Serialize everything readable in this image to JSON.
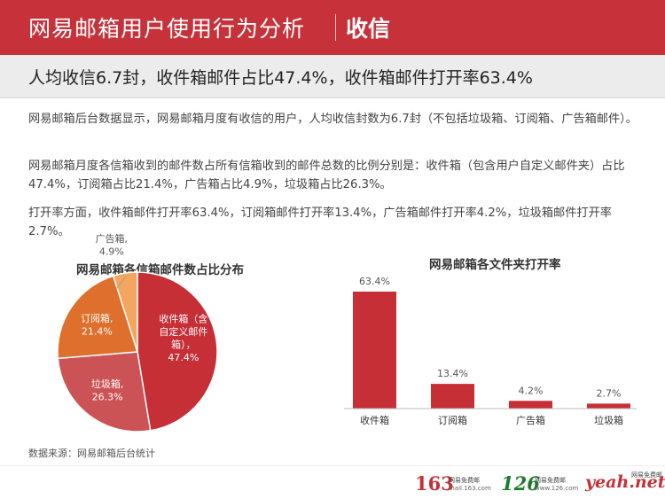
{
  "header": {
    "title": "网易邮箱用户使用行为分析",
    "section": "收信"
  },
  "subheading": "人均收信6.7封，收件箱邮件占比47.4%，收件箱邮件打开率63.4%",
  "paragraphs": [
    "网易邮箱后台数据显示，网易邮箱月度有收信的用户，人均收信封数为6.7封（不包括垃圾箱、订阅箱、广告箱邮件）。",
    "网易邮箱月度各信箱收到的邮件数占所有信箱收到的邮件总数的比例分别是：收件箱（包含用户自定义邮件夹）占比47.4%，订阅箱占比21.4%，广告箱占比4.9%，垃圾箱占比26.3%。",
    "打开率方面，收件箱邮件打开率63.4%，订阅箱邮件打开率13.4%，广告箱邮件打开率4.2%，垃圾箱邮件打开率2.7%。"
  ],
  "chart_data": [
    {
      "type": "pie",
      "title": "网易邮箱各信箱邮件数占比分布",
      "slices": [
        {
          "label": "收件箱（含自定义邮件箱）",
          "value": 47.4,
          "display": "47.4%",
          "color": "#c62f36"
        },
        {
          "label": "垃圾箱",
          "value": 26.3,
          "display": "26.3%",
          "color": "#cc5355"
        },
        {
          "label": "订阅箱",
          "value": 21.4,
          "display": "21.4%",
          "color": "#de6f2c"
        },
        {
          "label": "广告箱",
          "value": 4.9,
          "display": "4.9%",
          "color": "#f2a660"
        }
      ],
      "slice_text": [
        {
          "lines": [
            "收件箱（含",
            "自定义邮件",
            "箱），",
            "47.4%"
          ],
          "color": "#ffffff"
        },
        {
          "lines": [
            "垃圾箱,",
            "26.3%"
          ],
          "color": "#ffffff"
        },
        {
          "lines": [
            "订阅箱,",
            "21.4%"
          ],
          "color": "#ffffff"
        },
        {
          "lines": [
            "广告箱,",
            "4.9%"
          ],
          "color": "#555555"
        }
      ]
    },
    {
      "type": "bar",
      "title": "网易邮箱各文件夹打开率",
      "categories": [
        "收件箱",
        "订阅箱",
        "广告箱",
        "垃圾箱"
      ],
      "values": [
        63.4,
        13.4,
        4.2,
        2.7
      ],
      "value_labels": [
        "63.4%",
        "13.4%",
        "4.2%",
        "2.7%"
      ],
      "color": "#c62f36",
      "ylim": [
        0,
        63.4
      ]
    }
  ],
  "source": "数据来源：网易邮箱后台统计",
  "logos": {
    "l163": {
      "big": "163",
      "top": "网易免费邮",
      "bottom": "mail.163.com",
      "color": "#c62f36"
    },
    "l126": {
      "big": "126",
      "top": "网易免费邮",
      "bottom": "www.126.com",
      "color": "#1f7a2e"
    },
    "yeah": {
      "big": "yeah.net",
      "top": "网易免费邮",
      "color": "#c62f36"
    }
  }
}
